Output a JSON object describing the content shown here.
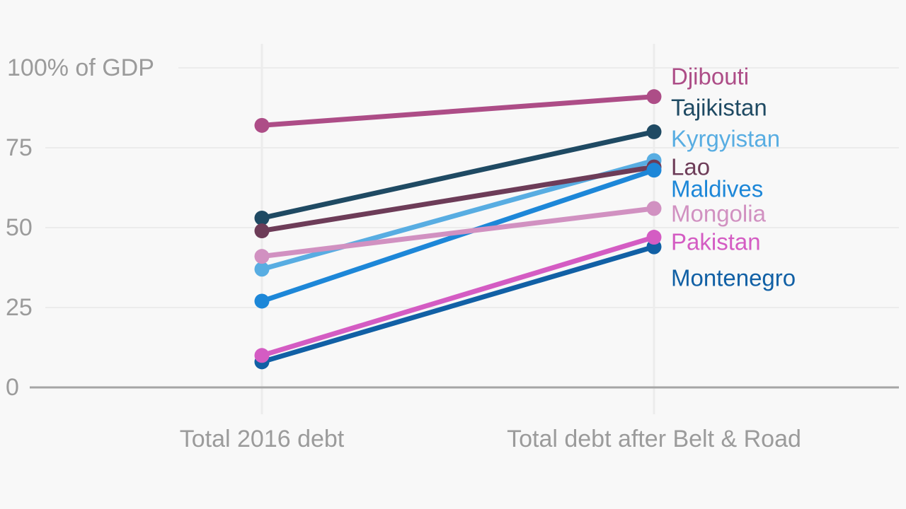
{
  "chart_data": {
    "type": "line",
    "subtype": "slopegraph",
    "title": "",
    "categories": [
      "Total 2016 debt",
      "Total debt after Belt & Road"
    ],
    "ylabel": "100% of GDP",
    "y_axis": {
      "top_label": "100% of GDP",
      "tick_labels": [
        "75",
        "50",
        "25",
        "0"
      ],
      "tick_values": [
        75,
        50,
        25,
        0
      ],
      "gridline_values": [
        100,
        75,
        50,
        25
      ],
      "range": [
        0,
        100
      ]
    },
    "grid": true,
    "legend_position": "right-inline-labels",
    "series": [
      {
        "name": "Djibouti",
        "color": "#ad4d87",
        "values": [
          82,
          91
        ]
      },
      {
        "name": "Tajikistan",
        "color": "#1f4a63",
        "values": [
          53,
          80
        ]
      },
      {
        "name": "Kyrgyistan",
        "color": "#58ade2",
        "values": [
          37,
          71
        ]
      },
      {
        "name": "Lao",
        "color": "#6d3c58",
        "values": [
          49,
          69
        ]
      },
      {
        "name": "Maldives",
        "color": "#1d87d8",
        "values": [
          27,
          68
        ]
      },
      {
        "name": "Mongolia",
        "color": "#d191c1",
        "values": [
          41,
          56
        ]
      },
      {
        "name": "Pakistan",
        "color": "#d45cc3",
        "values": [
          10,
          47
        ]
      },
      {
        "name": "Montenegro",
        "color": "#1160a5",
        "values": [
          8,
          44
        ]
      }
    ]
  },
  "colors": {
    "background": "#f8f8f8",
    "gridline": "#ececec",
    "axis_line": "#a6a6a6",
    "tick_text": "#9b9b9b"
  }
}
